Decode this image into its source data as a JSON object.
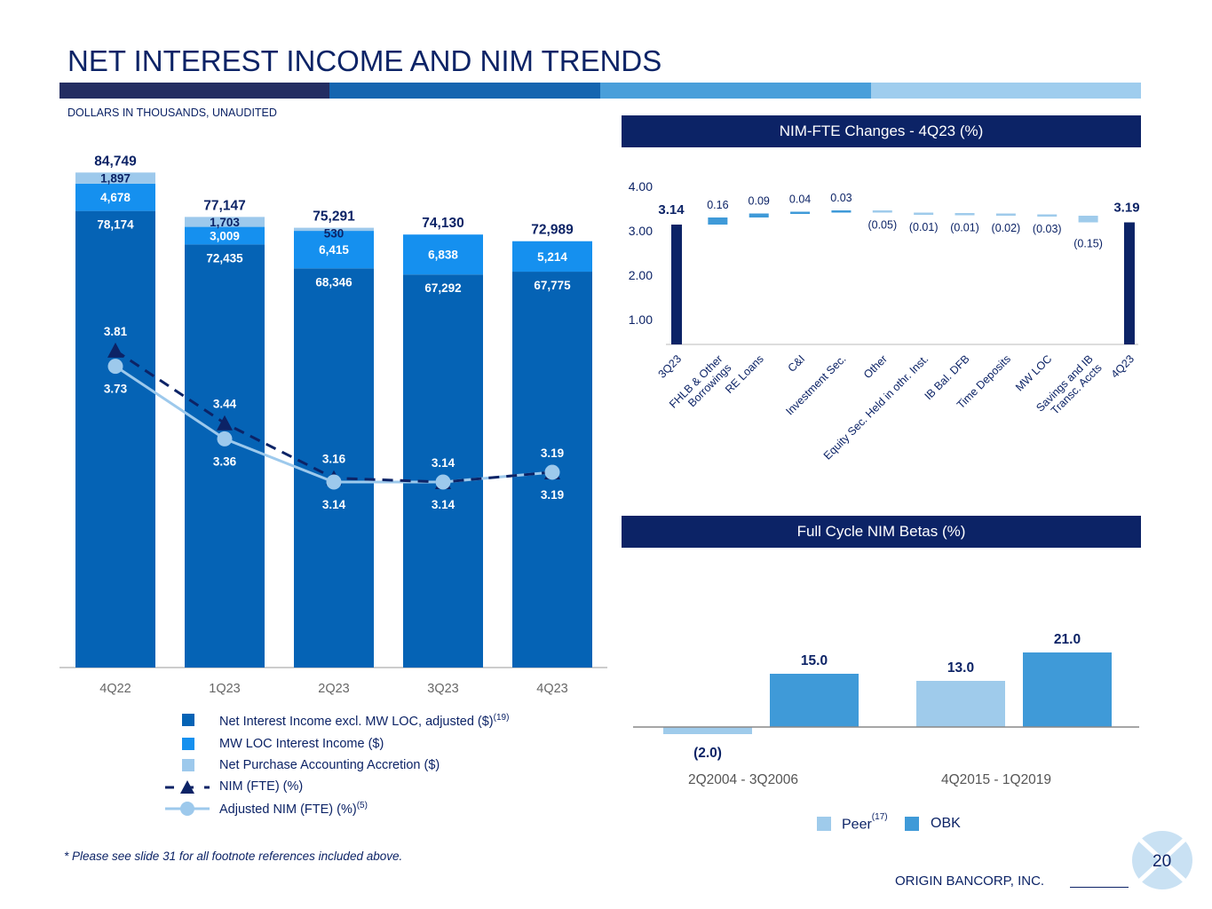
{
  "header": {
    "title": "NET INTEREST INCOME AND NIM TRENDS",
    "subtitle": "DOLLARS IN THOUSANDS, UNAUDITED",
    "stripe_colors": [
      "#232d62",
      "#1565b0",
      "#4a9fda",
      "#9fcdee"
    ]
  },
  "footer": {
    "footnote": "* Please see slide 31 for all footnote references included above.",
    "company": "ORIGIN BANCORP, INC.",
    "page": "20"
  },
  "chart_data": [
    {
      "type": "bar",
      "title": "",
      "stacked": true,
      "categories": [
        "4Q22",
        "1Q23",
        "2Q23",
        "3Q23",
        "4Q23"
      ],
      "totals": [
        "84,749",
        "77,147",
        "75,291",
        "74,130",
        "72,989"
      ],
      "series": [
        {
          "name": "Net Interest Income excl. MW LOC, adjusted ($)",
          "footnote": "(19)",
          "color": "#0563b5",
          "values": [
            78174,
            72435,
            68346,
            67292,
            67775
          ]
        },
        {
          "name": "MW LOC Interest Income ($)",
          "color": "#1590ef",
          "values": [
            4678,
            3009,
            6415,
            6838,
            5214
          ]
        },
        {
          "name": "Net Purchase Accounting Accretion ($)",
          "color": "#9dc9ec",
          "values": [
            1897,
            1703,
            530,
            0,
            0
          ]
        }
      ],
      "lines": [
        {
          "name": "NIM (FTE) (%)",
          "color": "#0c2366",
          "style": "dashed-triangle",
          "values": [
            3.81,
            3.44,
            3.16,
            3.14,
            3.19
          ]
        },
        {
          "name": "Adjusted NIM (FTE) (%)",
          "footnote": "(5)",
          "color": "#9dc9ec",
          "style": "solid-circle",
          "values": [
            3.73,
            3.36,
            3.14,
            3.14,
            3.19
          ]
        }
      ]
    },
    {
      "type": "bar",
      "subtype": "waterfall",
      "title": "NIM-FTE Changes - 4Q23 (%)",
      "yticks": [
        "1.00",
        "2.00",
        "3.00",
        "4.00"
      ],
      "ylim": [
        0.44,
        4.0
      ],
      "start": {
        "label": "3Q23",
        "value": 3.14,
        "text": "3.14"
      },
      "end": {
        "label": "4Q23",
        "value": 3.19,
        "text": "3.19"
      },
      "changes": [
        {
          "label": "FHLB & Other|Borrowings",
          "value": 0.16,
          "text": "0.16"
        },
        {
          "label": "RE Loans",
          "value": 0.09,
          "text": "0.09"
        },
        {
          "label": "C&I",
          "value": 0.04,
          "text": "0.04"
        },
        {
          "label": "Investment Sec.",
          "value": 0.03,
          "text": "0.03"
        },
        {
          "label": "Other",
          "value": -0.05,
          "text": "(0.05)"
        },
        {
          "label": "Equity Sec. Held in othr. Inst.",
          "value": -0.01,
          "text": "(0.01)"
        },
        {
          "label": "IB Bal. DFB",
          "value": -0.01,
          "text": "(0.01)"
        },
        {
          "label": "Time Deposits",
          "value": -0.02,
          "text": "(0.02)"
        },
        {
          "label": "MW LOC",
          "value": -0.03,
          "text": "(0.03)"
        },
        {
          "label": "Savings and IB|Transc. Accts",
          "value": -0.15,
          "text": "(0.15)"
        }
      ],
      "colors": {
        "total": "#0c2366",
        "increase": "#3f9ad8",
        "decrease": "#9fcbeb"
      }
    },
    {
      "type": "bar",
      "title": "Full Cycle NIM Betas (%)",
      "categories": [
        "2Q2004 - 3Q2006",
        "4Q2015 - 1Q2019"
      ],
      "series": [
        {
          "name": "Peer",
          "footnote": "(17)",
          "color": "#9fcbeb",
          "values": [
            -2.0,
            13.0
          ],
          "labels": [
            "(2.0)",
            "13.0"
          ]
        },
        {
          "name": "OBK",
          "color": "#3f9ad8",
          "values": [
            15.0,
            21.0
          ],
          "labels": [
            "15.0",
            "21.0"
          ]
        }
      ]
    }
  ]
}
